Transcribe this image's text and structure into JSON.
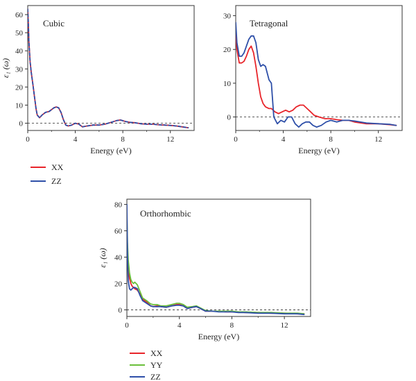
{
  "chart_data": [
    {
      "type": "line",
      "title": "Cubic",
      "xlabel": "Energy (eV)",
      "ylabel": "ε₁ (ω)",
      "xlim": [
        0,
        14
      ],
      "ylim": [
        -4,
        65
      ],
      "xticks": [
        0,
        4,
        8,
        12
      ],
      "yticks": [
        0,
        10,
        20,
        30,
        40,
        50,
        60
      ],
      "reference_line_y": 0,
      "legend_position": "below-left",
      "series": [
        {
          "name": "XX",
          "color": "#e8242a",
          "dashed": false,
          "x": [
            0,
            0.05,
            0.1,
            0.2,
            0.3,
            0.4,
            0.5,
            0.6,
            0.7,
            0.8,
            1.0,
            1.2,
            1.5,
            1.8,
            2.0,
            2.2,
            2.4,
            2.6,
            2.8,
            3.0,
            3.2,
            3.4,
            3.7,
            4.0,
            4.3,
            4.6,
            5.0,
            5.5,
            6.0,
            6.5,
            7.0,
            7.5,
            7.8,
            8.2,
            8.6,
            9.0,
            9.5,
            10.0,
            10.5,
            11.0,
            11.5,
            12.0,
            12.5,
            13.0,
            13.5
          ],
          "y": [
            63,
            55,
            45,
            34,
            28,
            23,
            18,
            13,
            8,
            4.5,
            3,
            4.5,
            6,
            6.5,
            7.5,
            8.5,
            9,
            8.5,
            6,
            2,
            -1,
            -1.5,
            -1,
            0,
            -0.5,
            -2,
            -1.5,
            -1,
            -1,
            -0.5,
            0.5,
            1.5,
            1.8,
            1,
            0.5,
            0.3,
            -0.3,
            -0.5,
            -0.5,
            -0.8,
            -1,
            -1.2,
            -1.5,
            -2,
            -2.5
          ]
        },
        {
          "name": "ZZ",
          "color": "#2e4fa8",
          "dashed": true,
          "x": [
            0,
            0.05,
            0.1,
            0.2,
            0.3,
            0.4,
            0.5,
            0.6,
            0.7,
            0.8,
            1.0,
            1.2,
            1.5,
            1.8,
            2.0,
            2.2,
            2.4,
            2.6,
            2.8,
            3.0,
            3.2,
            3.4,
            3.7,
            4.0,
            4.3,
            4.6,
            5.0,
            5.5,
            6.0,
            6.5,
            7.0,
            7.5,
            7.8,
            8.2,
            8.6,
            9.0,
            9.5,
            10.0,
            10.5,
            11.0,
            11.5,
            12.0,
            12.5,
            13.0,
            13.5
          ],
          "y": [
            63,
            55,
            45,
            34,
            28,
            23,
            18,
            13,
            8,
            4.5,
            3,
            4.5,
            6,
            6.5,
            7.5,
            8.5,
            9,
            8.5,
            6,
            2,
            -1,
            -1.5,
            -1,
            0,
            -0.5,
            -2,
            -1.5,
            -1,
            -1,
            -0.5,
            0.5,
            1.5,
            1.8,
            1,
            0.5,
            0.3,
            -0.3,
            -0.5,
            -0.5,
            -0.8,
            -1,
            -1.2,
            -1.5,
            -2,
            -2.5
          ]
        }
      ]
    },
    {
      "type": "line",
      "title": "Tetragonal",
      "xlabel": "Energy (eV)",
      "ylabel": "",
      "xlim": [
        0,
        14
      ],
      "ylim": [
        -4,
        33
      ],
      "xticks": [
        0,
        4,
        8,
        12
      ],
      "yticks": [
        0,
        10,
        20,
        30
      ],
      "reference_line_y": 0,
      "series": [
        {
          "name": "XX",
          "color": "#e8242a",
          "dashed": false,
          "x": [
            0,
            0.1,
            0.3,
            0.5,
            0.7,
            0.9,
            1.1,
            1.3,
            1.5,
            1.7,
            1.9,
            2.1,
            2.3,
            2.5,
            2.8,
            3.0,
            3.3,
            3.6,
            3.9,
            4.2,
            4.5,
            4.8,
            5.1,
            5.4,
            5.7,
            6.0,
            6.3,
            6.6,
            7.0,
            7.5,
            8.0,
            8.5,
            9.0,
            9.5,
            10.0,
            11.0,
            12.0,
            13.0,
            13.5
          ],
          "y": [
            25,
            20,
            16,
            16,
            16.5,
            18,
            20,
            21,
            19,
            15,
            10,
            6,
            4,
            3,
            2.5,
            2.5,
            1.5,
            1,
            1.5,
            2,
            1.5,
            2,
            3,
            3.5,
            3.5,
            2.5,
            1.5,
            0.5,
            0,
            -0.5,
            -0.5,
            -0.8,
            -1,
            -1,
            -1.5,
            -2,
            -2,
            -2.3,
            -2.5
          ]
        },
        {
          "name": "ZZ",
          "color": "#2e4fa8",
          "dashed": false,
          "x": [
            0,
            0.1,
            0.3,
            0.5,
            0.7,
            0.9,
            1.1,
            1.3,
            1.5,
            1.7,
            1.9,
            2.1,
            2.3,
            2.5,
            2.8,
            3.0,
            3.2,
            3.5,
            3.8,
            4.1,
            4.4,
            4.7,
            5.0,
            5.3,
            5.6,
            5.9,
            6.2,
            6.5,
            6.8,
            7.2,
            7.6,
            8.0,
            8.5,
            9.0,
            9.5,
            10.0,
            11.0,
            12.0,
            13.0,
            13.5
          ],
          "y": [
            28,
            22,
            18,
            18,
            19,
            21,
            23,
            24,
            24,
            22,
            17,
            15,
            15.5,
            15,
            11,
            10,
            0,
            -2,
            -1,
            -1.5,
            0,
            0,
            -2,
            -3,
            -2,
            -1.5,
            -1.5,
            -2.5,
            -3,
            -2.5,
            -1.5,
            -1,
            -1.5,
            -1,
            -1,
            -1.2,
            -1.8,
            -2,
            -2.2,
            -2.5
          ]
        }
      ]
    },
    {
      "type": "line",
      "title": "Orthorhombic",
      "xlabel": "Energy (eV)",
      "ylabel": "ε₁ (ω)",
      "xlim": [
        0,
        14
      ],
      "ylim": [
        -5,
        84
      ],
      "xticks": [
        0,
        4,
        8,
        12
      ],
      "yticks": [
        0,
        20,
        40,
        60,
        80
      ],
      "reference_line_y": 0,
      "legend_position": "below-left",
      "series": [
        {
          "name": "XX",
          "color": "#e8242a",
          "dashed": false,
          "x": [
            0,
            0.05,
            0.1,
            0.2,
            0.3,
            0.4,
            0.5,
            0.6,
            0.8,
            1.0,
            1.2,
            1.5,
            1.8,
            2.0,
            2.3,
            2.6,
            3.0,
            3.4,
            3.8,
            4.0,
            4.3,
            4.6,
            5.0,
            5.3,
            5.6,
            6.0,
            6.5,
            7.0,
            7.5,
            8.0,
            8.5,
            9.0,
            10.0,
            11.0,
            12.0,
            13.0,
            13.5
          ],
          "y": [
            65,
            45,
            32,
            24,
            20,
            18,
            17,
            16,
            15,
            12,
            8,
            6,
            3,
            2.5,
            3,
            2.5,
            2,
            3,
            4,
            4,
            3,
            1,
            2,
            2.5,
            1,
            -1,
            -1,
            -1,
            -1.5,
            -1.5,
            -1.5,
            -2,
            -2,
            -2.5,
            -2.5,
            -3,
            -3
          ]
        },
        {
          "name": "YY",
          "color": "#6abf3a",
          "dashed": false,
          "x": [
            0,
            0.05,
            0.1,
            0.2,
            0.3,
            0.4,
            0.5,
            0.6,
            0.8,
            1.0,
            1.2,
            1.5,
            1.8,
            2.0,
            2.3,
            2.6,
            3.0,
            3.4,
            3.8,
            4.0,
            4.3,
            4.6,
            5.0,
            5.3,
            5.6,
            6.0,
            6.5,
            7.0,
            7.5,
            8.0,
            8.5,
            9.0,
            10.0,
            11.0,
            12.0,
            13.0,
            13.5
          ],
          "y": [
            72,
            50,
            38,
            28,
            23,
            21,
            20,
            21,
            19,
            14,
            9,
            7,
            4.5,
            4,
            4,
            3,
            3,
            4,
            5,
            5,
            4,
            2,
            2.5,
            3,
            1.5,
            -0.5,
            -1,
            -1,
            -1,
            -1,
            -1.5,
            -1.5,
            -2,
            -2,
            -2.5,
            -2.5,
            -3
          ]
        },
        {
          "name": "ZZ",
          "color": "#2e4fa8",
          "dashed": false,
          "x": [
            0,
            0.05,
            0.1,
            0.2,
            0.3,
            0.4,
            0.5,
            0.6,
            0.8,
            1.0,
            1.2,
            1.5,
            1.8,
            2.0,
            2.3,
            2.6,
            3.0,
            3.4,
            3.8,
            4.0,
            4.3,
            4.6,
            5.0,
            5.3,
            5.6,
            6.0,
            6.5,
            7.0,
            7.5,
            8.0,
            8.5,
            9.0,
            10.0,
            11.0,
            12.0,
            13.0,
            13.5
          ],
          "y": [
            80,
            40,
            22,
            16,
            15,
            16,
            17,
            17,
            16,
            11,
            7,
            5,
            3,
            2.5,
            2.5,
            2.5,
            2,
            3,
            3.5,
            3.5,
            3,
            1,
            2,
            2.5,
            1,
            -1,
            -1,
            -1.5,
            -1.5,
            -1.5,
            -2,
            -2,
            -2.5,
            -2.5,
            -3,
            -3,
            -3.5
          ]
        }
      ]
    }
  ]
}
